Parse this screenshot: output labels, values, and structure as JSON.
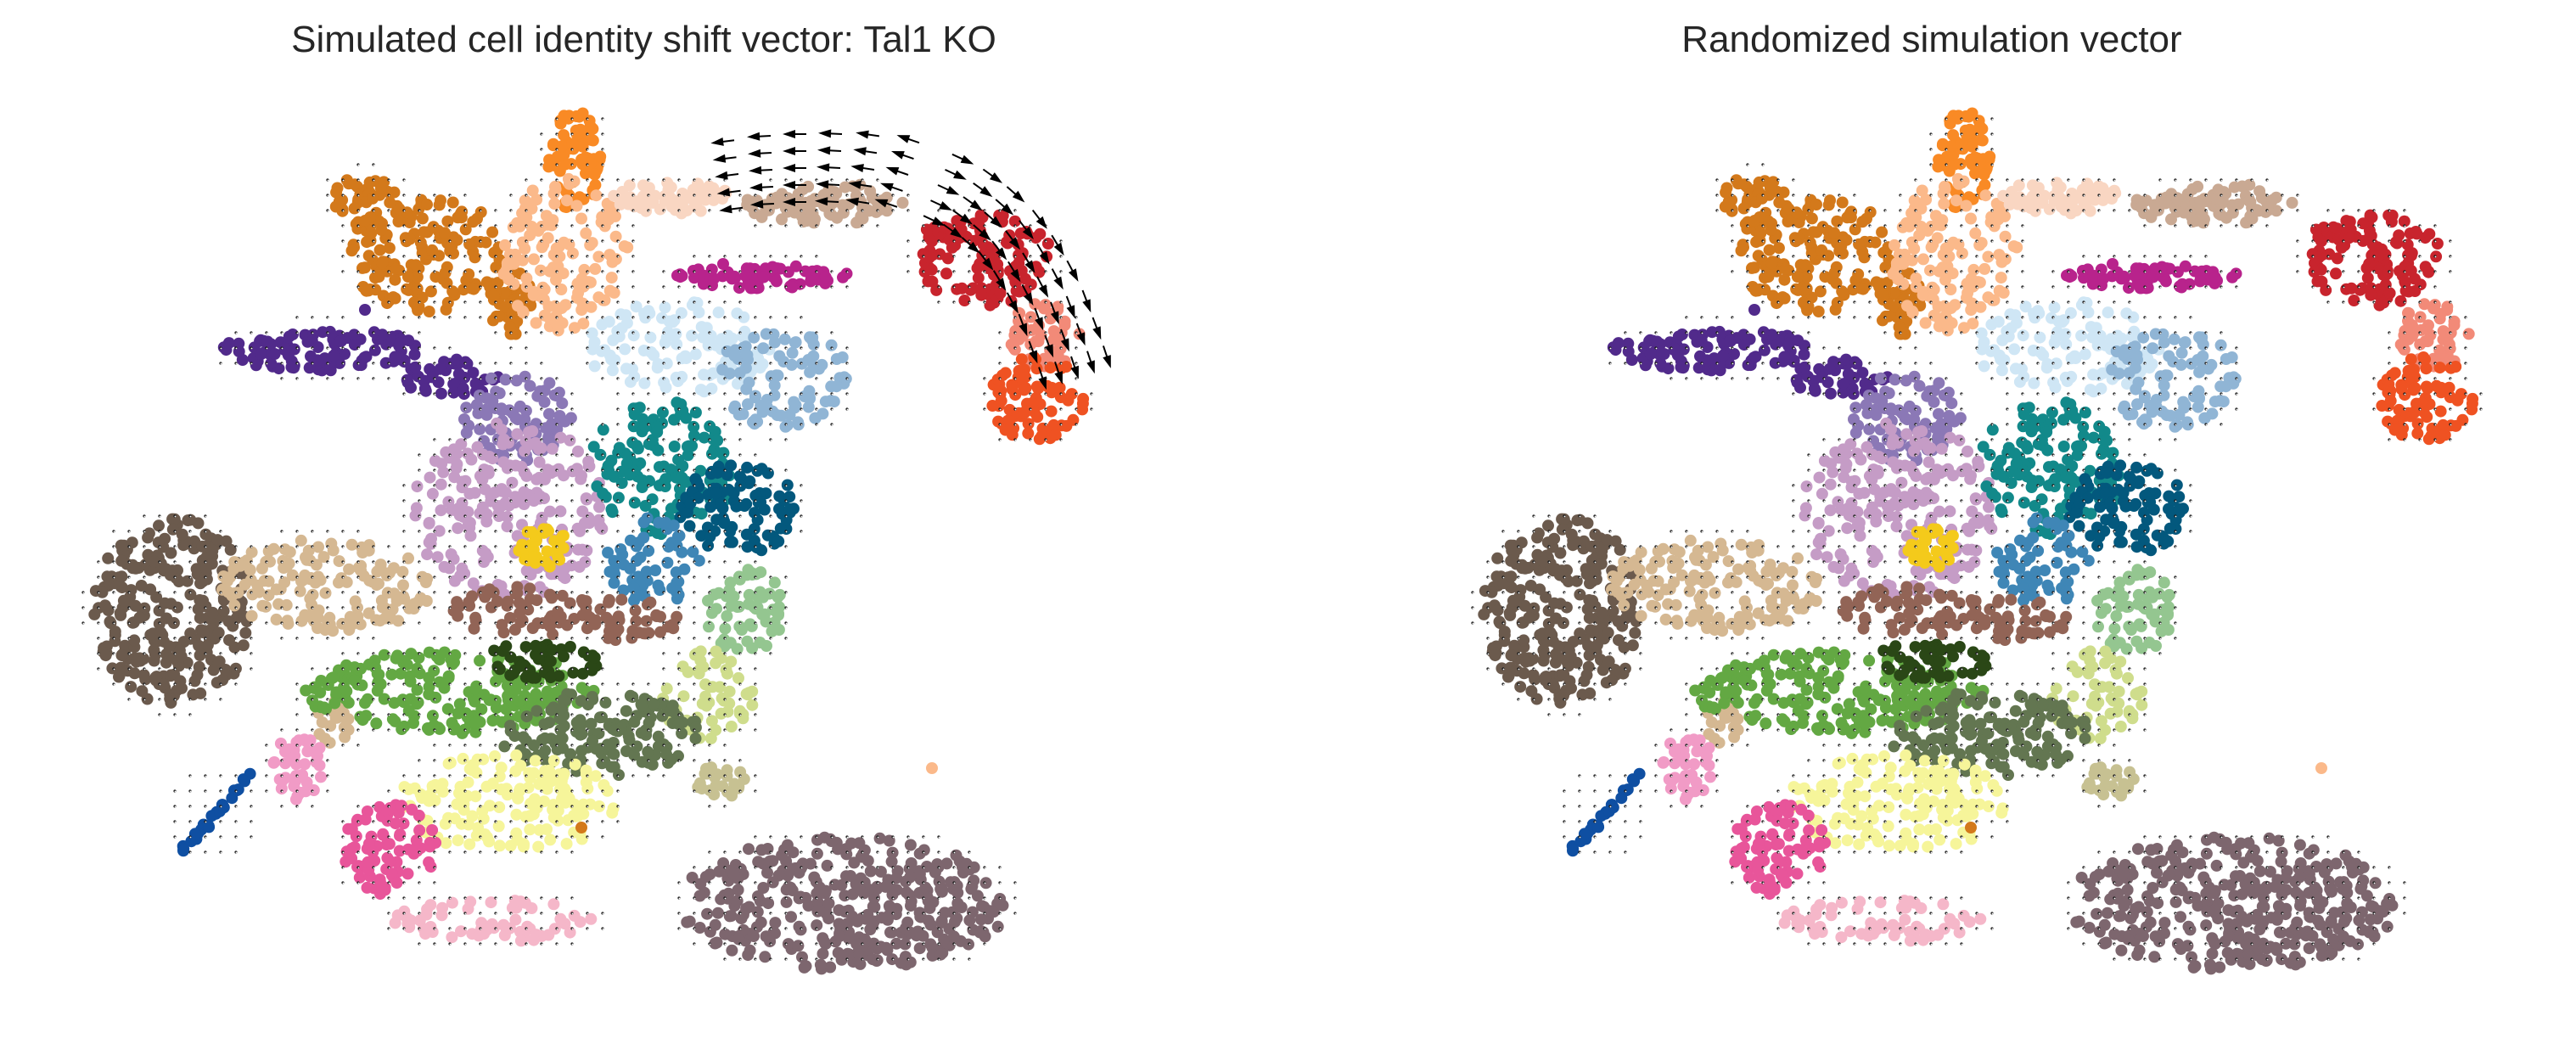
{
  "chart_data": [
    {
      "type": "scatter",
      "title": "Simulated cell identity shift vector: Tal1 KO",
      "xlabel": "",
      "ylabel": "",
      "axes_visible": false,
      "grid": false,
      "overlay": "quiver",
      "quiver_region": "top-right erythroid branch (tan, red, orange clusters)",
      "quiver_color": "#000000"
    },
    {
      "type": "scatter",
      "title": "Randomized simulation vector",
      "xlabel": "",
      "ylabel": "",
      "axes_visible": false,
      "grid": false,
      "overlay": "quiver",
      "quiver_region": "none visible (near-zero vectors)",
      "quiver_color": "#000000"
    }
  ],
  "clusters": [
    {
      "color": "#d3791b"
    },
    {
      "color": "#f98a25"
    },
    {
      "color": "#fbb98a"
    },
    {
      "color": "#f9d6c2"
    },
    {
      "color": "#c9a993"
    },
    {
      "color": "#c8242d"
    },
    {
      "color": "#f28a78"
    },
    {
      "color": "#ef5222"
    },
    {
      "color": "#b8238c"
    },
    {
      "color": "#512a8b"
    },
    {
      "color": "#cfe6f5"
    },
    {
      "color": "#90b5d5"
    },
    {
      "color": "#8b78b6"
    },
    {
      "color": "#c59cc6"
    },
    {
      "color": "#12898a"
    },
    {
      "color": "#03587d"
    },
    {
      "color": "#3f86b6"
    },
    {
      "color": "#f4ca1b"
    },
    {
      "color": "#926456"
    },
    {
      "color": "#94c690"
    },
    {
      "color": "#6b5a4d"
    },
    {
      "color": "#d5b892"
    },
    {
      "color": "#63a843"
    },
    {
      "color": "#2a4716"
    },
    {
      "color": "#cfdd8c"
    },
    {
      "color": "#637651"
    },
    {
      "color": "#c7c192"
    },
    {
      "color": "#f6f59a"
    },
    {
      "color": "#f19bc6"
    },
    {
      "color": "#e8559a"
    },
    {
      "color": "#f5b7c9"
    },
    {
      "color": "#0f4fa2"
    },
    {
      "color": "#7d666e"
    }
  ]
}
